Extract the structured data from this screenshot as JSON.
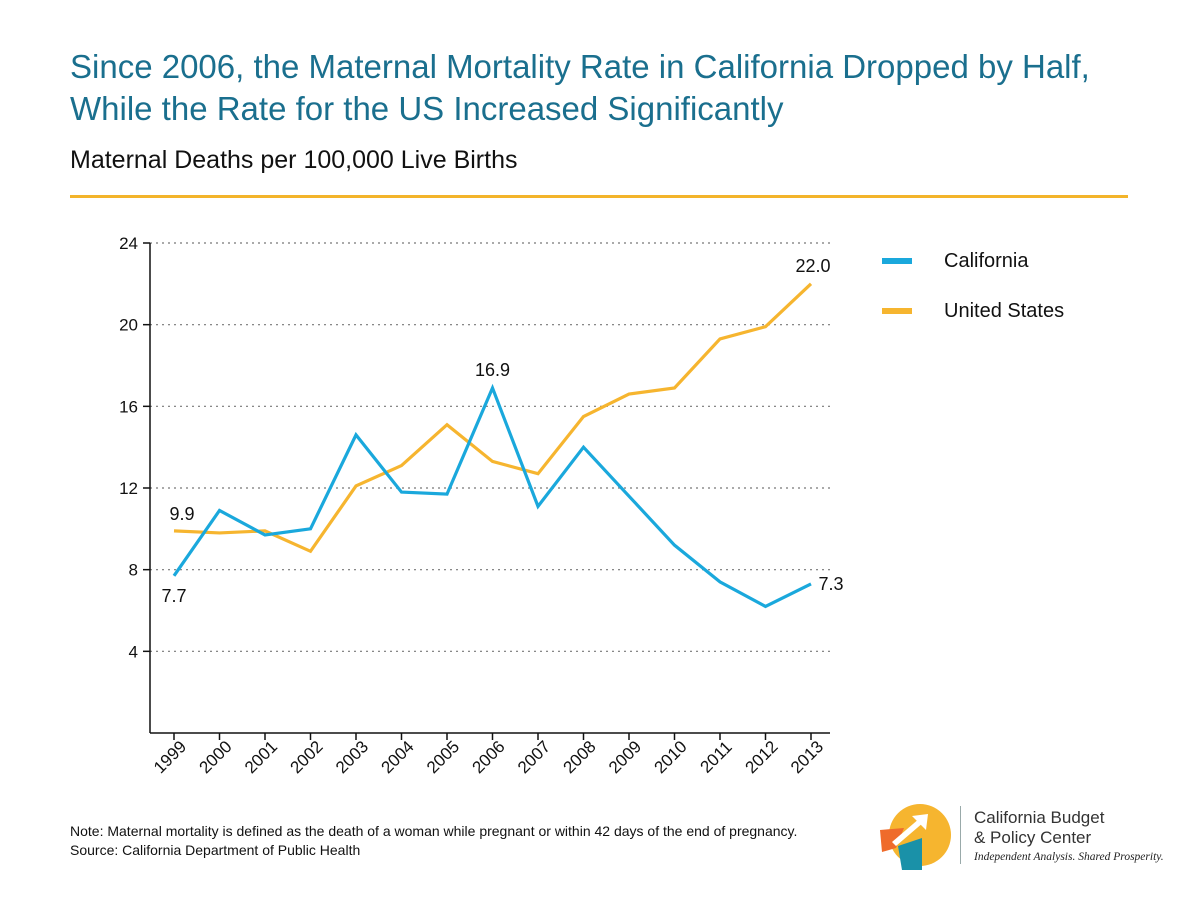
{
  "title": "Since 2006, the Maternal Mortality Rate in California Dropped by Half, While the Rate for the US Increased Significantly",
  "subtitle": "Maternal Deaths per 100,000 Live Births",
  "colors": {
    "california": "#1aa8dc",
    "united_states": "#f6b52f",
    "title": "#1a6f8e",
    "rule": "#f3b42a"
  },
  "legend": {
    "placement": "top-right",
    "items": [
      "California",
      "United States"
    ]
  },
  "notes": {
    "note": "Note: Maternal mortality is defined as the death of a woman while pregnant or within 42 days of the end of pregnancy.",
    "source": "Source: California Department of Public Health"
  },
  "logo": {
    "name_line1": "California Budget",
    "name_line2": "& Policy Center",
    "tagline": "Independent Analysis. Shared Prosperity."
  },
  "chart_data": {
    "type": "line",
    "x": [
      "1999",
      "2000",
      "2001",
      "2002",
      "2003",
      "2004",
      "2005",
      "2006",
      "2007",
      "2008",
      "2009",
      "2010",
      "2011",
      "2012",
      "2013"
    ],
    "series": [
      {
        "name": "California",
        "color": "#1aa8dc",
        "values": [
          7.7,
          10.9,
          9.7,
          10.0,
          14.6,
          11.8,
          11.7,
          16.9,
          11.1,
          14.0,
          11.6,
          9.2,
          7.4,
          6.2,
          7.3
        ]
      },
      {
        "name": "United States",
        "color": "#f6b52f",
        "values": [
          9.9,
          9.8,
          9.9,
          8.9,
          12.1,
          13.1,
          15.1,
          13.3,
          12.7,
          15.5,
          16.6,
          16.9,
          19.3,
          19.9,
          22.0
        ]
      }
    ],
    "annotations": [
      {
        "series": "California",
        "x": "1999",
        "text": "7.7"
      },
      {
        "series": "United States",
        "x": "1999",
        "text": "9.9"
      },
      {
        "series": "California",
        "x": "2006",
        "text": "16.9"
      },
      {
        "series": "California",
        "x": "2013",
        "text": "7.3"
      },
      {
        "series": "United States",
        "x": "2013",
        "text": "22.0"
      }
    ],
    "ylim": [
      0,
      24
    ],
    "yticks": [
      4,
      8,
      12,
      16,
      20,
      24
    ],
    "grid": "horizontal dotted",
    "title": "Since 2006, the Maternal Mortality Rate in California Dropped by Half, While the Rate for the US Increased Significantly",
    "ylabel": "Maternal Deaths per 100,000 Live Births",
    "xlabel": ""
  }
}
